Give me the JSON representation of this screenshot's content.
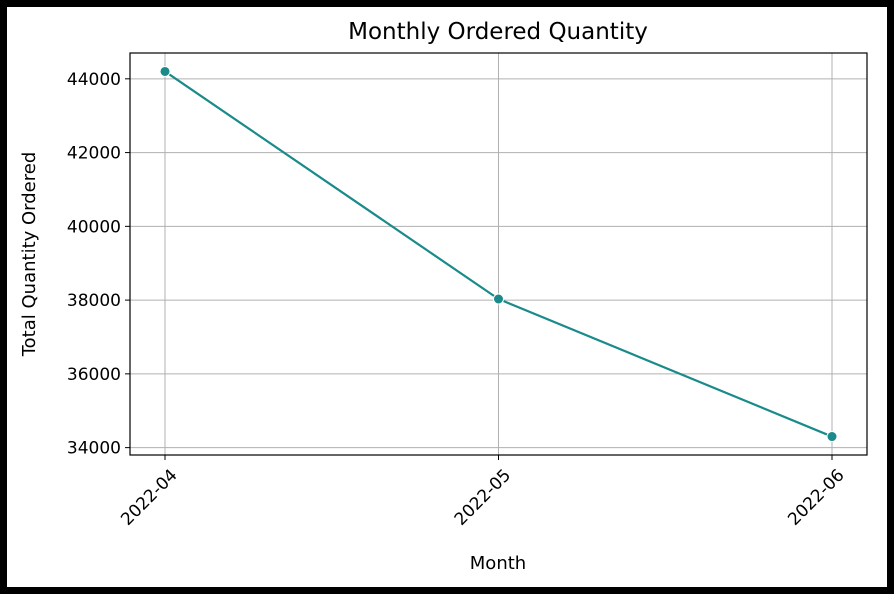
{
  "chart_data": {
    "type": "line",
    "title": "Monthly Ordered Quantity",
    "xlabel": "Month",
    "ylabel": "Total Quantity Ordered",
    "categories": [
      "2022-04",
      "2022-05",
      "2022-06"
    ],
    "series": [
      {
        "values": [
          44200,
          38030,
          34300
        ],
        "color": "#1a8a8a",
        "marker": "circle"
      }
    ],
    "yticks": [
      34000,
      36000,
      38000,
      40000,
      42000,
      44000
    ],
    "ylim": [
      33800,
      44700
    ],
    "grid": true,
    "xtick_rotation": 45
  }
}
